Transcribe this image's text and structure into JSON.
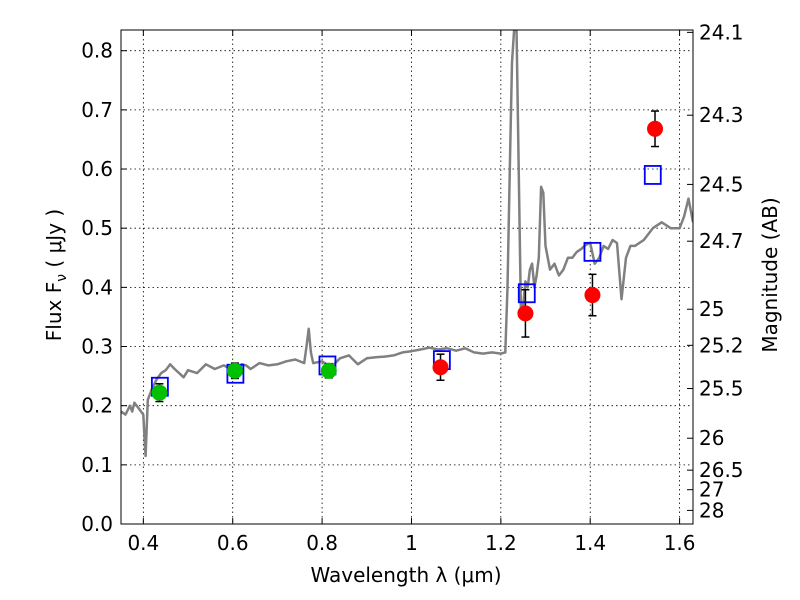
{
  "chart_data": {
    "type": "scatter",
    "xlabel": "Wavelength  λ (μm)",
    "ylabel": "Flux  F",
    "ylabel_sub": "ν",
    "ylabel_unit": " ( μJy )",
    "y2label": "Magnitude (AB)",
    "xlim": [
      0.35,
      1.63
    ],
    "ylim": [
      0.0,
      0.835
    ],
    "grid": true,
    "x_ticks": [
      {
        "value": 0.4,
        "label": "0.4"
      },
      {
        "value": 0.6,
        "label": "0.6"
      },
      {
        "value": 0.8,
        "label": "0.8"
      },
      {
        "value": 1.0,
        "label": "1"
      },
      {
        "value": 1.2,
        "label": "1.2"
      },
      {
        "value": 1.4,
        "label": "1.4"
      },
      {
        "value": 1.6,
        "label": "1.6"
      }
    ],
    "y_ticks": [
      {
        "value": 0.0,
        "label": "0.0"
      },
      {
        "value": 0.1,
        "label": "0.1"
      },
      {
        "value": 0.2,
        "label": "0.2"
      },
      {
        "value": 0.3,
        "label": "0.3"
      },
      {
        "value": 0.4,
        "label": "0.4"
      },
      {
        "value": 0.5,
        "label": "0.5"
      },
      {
        "value": 0.6,
        "label": "0.6"
      },
      {
        "value": 0.7,
        "label": "0.7"
      },
      {
        "value": 0.8,
        "label": "0.8"
      }
    ],
    "y2_ticks": [
      {
        "flux": 0.831,
        "label": "24.1"
      },
      {
        "flux": 0.691,
        "label": "24.3"
      },
      {
        "flux": 0.574,
        "label": "24.5"
      },
      {
        "flux": 0.478,
        "label": "24.7"
      },
      {
        "flux": 0.363,
        "label": "25"
      },
      {
        "flux": 0.302,
        "label": "25.2"
      },
      {
        "flux": 0.229,
        "label": "25.5"
      },
      {
        "flux": 0.145,
        "label": "26"
      },
      {
        "flux": 0.091,
        "label": "26.5"
      },
      {
        "flux": 0.058,
        "label": "27"
      },
      {
        "flux": 0.023,
        "label": "28"
      }
    ],
    "series": [
      {
        "role": "model-spectrum",
        "color": "#808080",
        "x": [
          0.35,
          0.36,
          0.37,
          0.375,
          0.38,
          0.39,
          0.395,
          0.4,
          0.403,
          0.405,
          0.41,
          0.42,
          0.43,
          0.44,
          0.45,
          0.46,
          0.47,
          0.48,
          0.49,
          0.5,
          0.52,
          0.54,
          0.56,
          0.58,
          0.6,
          0.61,
          0.62,
          0.63,
          0.64,
          0.66,
          0.68,
          0.7,
          0.72,
          0.74,
          0.76,
          0.765,
          0.77,
          0.775,
          0.78,
          0.8,
          0.82,
          0.84,
          0.86,
          0.88,
          0.9,
          0.92,
          0.94,
          0.96,
          0.98,
          1.0,
          1.02,
          1.04,
          1.06,
          1.08,
          1.1,
          1.12,
          1.14,
          1.16,
          1.18,
          1.2,
          1.21,
          1.215,
          1.22,
          1.225,
          1.23,
          1.235,
          1.24,
          1.245,
          1.25,
          1.255,
          1.26,
          1.265,
          1.27,
          1.275,
          1.28,
          1.285,
          1.29,
          1.295,
          1.3,
          1.31,
          1.32,
          1.33,
          1.34,
          1.35,
          1.36,
          1.37,
          1.38,
          1.39,
          1.4,
          1.41,
          1.42,
          1.43,
          1.44,
          1.45,
          1.46,
          1.47,
          1.48,
          1.49,
          1.5,
          1.52,
          1.54,
          1.56,
          1.58,
          1.6,
          1.61,
          1.62,
          1.63
        ],
        "y": [
          0.19,
          0.185,
          0.2,
          0.19,
          0.205,
          0.195,
          0.19,
          0.185,
          0.14,
          0.115,
          0.21,
          0.23,
          0.245,
          0.255,
          0.26,
          0.27,
          0.262,
          0.255,
          0.248,
          0.26,
          0.255,
          0.27,
          0.262,
          0.268,
          0.26,
          0.25,
          0.27,
          0.268,
          0.262,
          0.272,
          0.268,
          0.27,
          0.275,
          0.278,
          0.272,
          0.3,
          0.33,
          0.29,
          0.272,
          0.275,
          0.265,
          0.28,
          0.285,
          0.27,
          0.28,
          0.282,
          0.283,
          0.285,
          0.29,
          0.292,
          0.295,
          0.298,
          0.295,
          0.297,
          0.293,
          0.297,
          0.29,
          0.288,
          0.29,
          0.288,
          0.29,
          0.4,
          0.6,
          0.78,
          0.84,
          0.84,
          0.6,
          0.35,
          0.37,
          0.41,
          0.4,
          0.43,
          0.44,
          0.4,
          0.42,
          0.45,
          0.57,
          0.56,
          0.47,
          0.43,
          0.44,
          0.42,
          0.43,
          0.45,
          0.45,
          0.46,
          0.465,
          0.472,
          0.475,
          0.44,
          0.45,
          0.47,
          0.465,
          0.48,
          0.475,
          0.38,
          0.45,
          0.47,
          0.47,
          0.48,
          0.5,
          0.51,
          0.5,
          0.5,
          0.52,
          0.55,
          0.51
        ]
      },
      {
        "role": "ground-photometry",
        "color": "#00c000",
        "marker": "circle",
        "x": [
          0.436,
          0.605,
          0.815
        ],
        "y": [
          0.222,
          0.259,
          0.259
        ],
        "yerr": [
          0.015,
          0.013,
          0.012
        ]
      },
      {
        "role": "space-photometry",
        "color": "#ff0000",
        "marker": "circle",
        "x": [
          1.065,
          1.255,
          1.405,
          1.545
        ],
        "y": [
          0.265,
          0.356,
          0.387,
          0.668
        ],
        "yerr": [
          0.022,
          0.04,
          0.035,
          0.03
        ]
      },
      {
        "role": "model-bandpass-flux",
        "color": "#0000ff",
        "marker": "open-square",
        "x": [
          0.437,
          0.606,
          0.812,
          1.068,
          1.258,
          1.405,
          1.54
        ],
        "y": [
          0.232,
          0.254,
          0.268,
          0.277,
          0.39,
          0.46,
          0.59
        ]
      }
    ]
  }
}
